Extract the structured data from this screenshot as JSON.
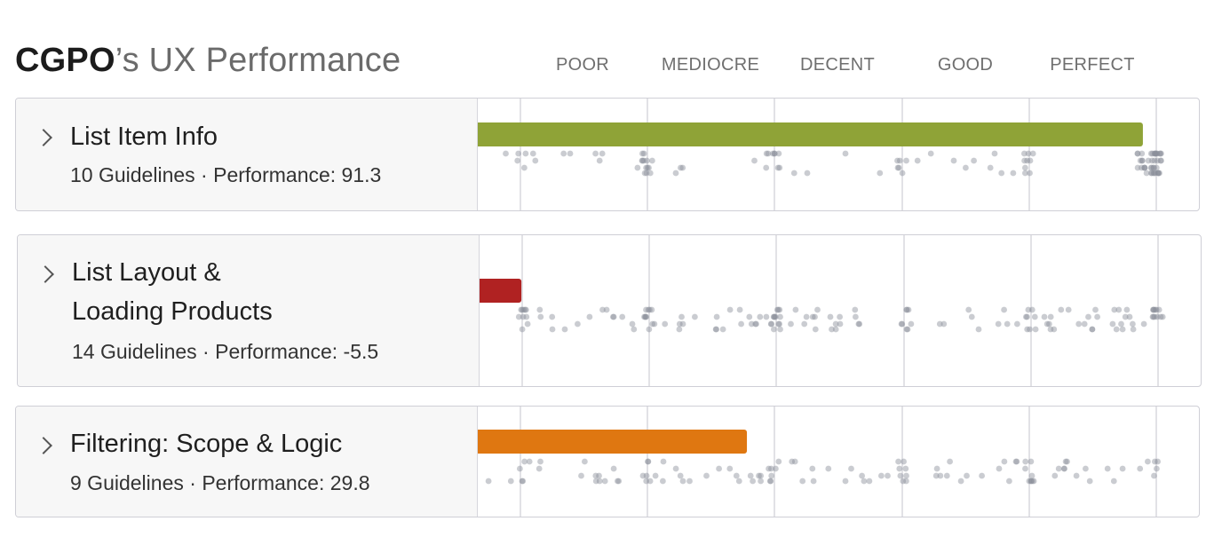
{
  "header": {
    "brand": "CGPO",
    "title_rest": "’s UX Performance",
    "scale_labels": [
      "POOR",
      "MEDIOCRE",
      "DECENT",
      "GOOD",
      "PERFECT"
    ]
  },
  "colors": {
    "good": "#8fa337",
    "poor": "#b02222",
    "mediocre": "#df7711",
    "dot": "#8a8f99",
    "gridline": "#d9d9de"
  },
  "categories": [
    {
      "title_lines": [
        "List Item Info"
      ],
      "guidelines": "10 Guidelines",
      "separator": " · ",
      "performance_label": "Performance: 91.3",
      "performance": 91.3,
      "bar_color": "#8fa337"
    },
    {
      "title_lines": [
        "List Layout &",
        "Loading Products"
      ],
      "guidelines": "14 Guidelines",
      "separator": " · ",
      "performance_label": "Performance: -5.5",
      "performance": -5.5,
      "bar_color": "#b02222"
    },
    {
      "title_lines": [
        "Filtering: Scope & Logic"
      ],
      "guidelines": "9 Guidelines",
      "separator": " · ",
      "performance_label": "Performance: 29.8",
      "performance": 29.8,
      "bar_color": "#df7711"
    }
  ],
  "chart_data": {
    "type": "bar",
    "categories": [
      "List Item Info",
      "List Layout & Loading Products",
      "Filtering: Scope & Logic"
    ],
    "values": [
      91.3,
      -5.5,
      29.8
    ],
    "scale_labels": [
      "POOR",
      "MEDIOCRE",
      "DECENT",
      "GOOD",
      "PERFECT"
    ],
    "xlim": [
      -12,
      100
    ]
  }
}
